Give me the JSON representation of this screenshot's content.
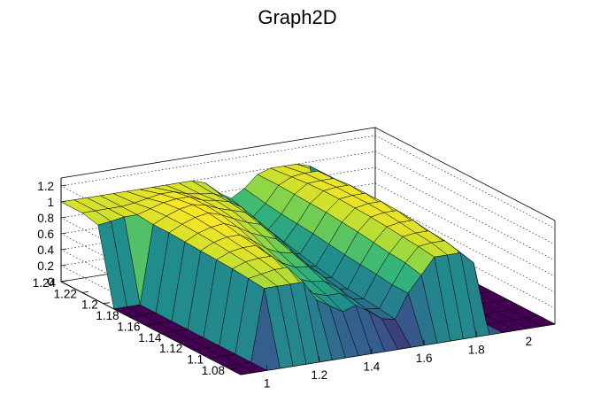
{
  "chart_data": {
    "type": "surface",
    "title": "Graph2D",
    "xlabel": "",
    "ylabel": "",
    "zlabel": "",
    "x_range": [
      0.9,
      2.1
    ],
    "y_range": [
      1.07,
      1.24
    ],
    "z_range": [
      0,
      1.3
    ],
    "x_ticks": [
      "1",
      "1.2",
      "1.4",
      "1.6",
      "1.8",
      "2"
    ],
    "y_ticks": [
      "1.08",
      "1.1",
      "1.12",
      "1.14",
      "1.16",
      "1.18",
      "1.2",
      "1.22",
      "1.24"
    ],
    "z_ticks": [
      "0",
      "0.2",
      "0.4",
      "0.6",
      "0.8",
      "1",
      "1.2"
    ],
    "grid": true,
    "colormap": "viridis",
    "grid_x": [
      0.9,
      0.95,
      1.0,
      1.05,
      1.1,
      1.15,
      1.2,
      1.25,
      1.3,
      1.35,
      1.4,
      1.45,
      1.5,
      1.55,
      1.6,
      1.65,
      1.7,
      1.75,
      1.8,
      1.85,
      1.9,
      1.95,
      2.0,
      2.05,
      2.1
    ],
    "grid_y": [
      1.07,
      1.085,
      1.1,
      1.115,
      1.13,
      1.145,
      1.16,
      1.175,
      1.19,
      1.205,
      1.22,
      1.24
    ],
    "z": [
      [
        0,
        0,
        0,
        0,
        0,
        0,
        0,
        0,
        0,
        0,
        0,
        0,
        0,
        0,
        0,
        0,
        0,
        0,
        0,
        0,
        0,
        0,
        0,
        0,
        0
      ],
      [
        0,
        0,
        0,
        0.9,
        0.9,
        0.9,
        0.9,
        0.65,
        0.55,
        0.45,
        0.5,
        0.4,
        0.28,
        0.25,
        0.55,
        0.75,
        0.95,
        0.95,
        0.95,
        0.8,
        0,
        0,
        0,
        0,
        0
      ],
      [
        0,
        0,
        0,
        0.92,
        0.95,
        0.98,
        0.98,
        0.75,
        0.6,
        0.55,
        0.55,
        0.45,
        0.3,
        0.28,
        0.55,
        0.8,
        0.98,
        1.0,
        1.0,
        0.85,
        0,
        0,
        0,
        0,
        0
      ],
      [
        0,
        0,
        0,
        0.94,
        1.0,
        1.02,
        1.02,
        0.82,
        0.68,
        0.62,
        0.6,
        0.5,
        0.32,
        0.3,
        0.58,
        0.82,
        1.0,
        1.02,
        1.02,
        0.88,
        0,
        0,
        0,
        0,
        0
      ],
      [
        0,
        0,
        0,
        0.95,
        1.02,
        1.05,
        1.05,
        0.9,
        0.78,
        0.7,
        0.68,
        0.55,
        0.35,
        0.32,
        0.6,
        0.85,
        1.02,
        1.05,
        1.05,
        0.9,
        0,
        0,
        0,
        0,
        0
      ],
      [
        0,
        0,
        0,
        0.96,
        1.04,
        1.08,
        1.08,
        0.98,
        0.86,
        0.78,
        0.75,
        0.6,
        0.38,
        0.36,
        0.62,
        0.88,
        1.04,
        1.07,
        1.07,
        0.92,
        0,
        0,
        0,
        0,
        0
      ],
      [
        0,
        0,
        0,
        0.97,
        1.05,
        1.1,
        1.12,
        1.05,
        0.95,
        0.88,
        0.82,
        0.68,
        0.42,
        0.4,
        0.65,
        0.9,
        1.05,
        1.08,
        1.08,
        0.93,
        0,
        0,
        0,
        0,
        0
      ],
      [
        0,
        0,
        0,
        0.98,
        1.06,
        1.12,
        1.15,
        1.1,
        1.02,
        0.95,
        0.9,
        0.75,
        0.5,
        0.45,
        0.68,
        0.92,
        1.06,
        1.08,
        1.08,
        0.94,
        0,
        0,
        0,
        0,
        0
      ],
      [
        0,
        0,
        0,
        0.98,
        1.06,
        1.12,
        1.15,
        1.12,
        1.05,
        1.0,
        0.95,
        0.82,
        0.58,
        0.5,
        0.7,
        0.93,
        1.06,
        1.08,
        1.08,
        0.95,
        0,
        0,
        0,
        0,
        0
      ],
      [
        0.95,
        0.97,
        1.0,
        1.0,
        1.05,
        1.1,
        1.12,
        1.12,
        1.05,
        1.02,
        0.98,
        0.88,
        0.65,
        0.55,
        0.72,
        0.94,
        1.05,
        1.06,
        1.06,
        0.95,
        0,
        0,
        0,
        0,
        0
      ],
      [
        1.0,
        1.0,
        1.0,
        1.0,
        1.02,
        1.05,
        1.08,
        1.08,
        1.03,
        1.0,
        0.98,
        0.9,
        0.72,
        0.6,
        0.75,
        0.95,
        1.03,
        1.05,
        1.05,
        0.95,
        0,
        0,
        0,
        0,
        0
      ],
      [
        1.0,
        1.0,
        1.0,
        1.0,
        1.0,
        1.0,
        1.0,
        1.0,
        1.0,
        1.0,
        1.0,
        0.95,
        0.8,
        0.7,
        0.8,
        0.95,
        1.0,
        1.0,
        1.0,
        0.95,
        0,
        0,
        0,
        0,
        0
      ]
    ]
  }
}
